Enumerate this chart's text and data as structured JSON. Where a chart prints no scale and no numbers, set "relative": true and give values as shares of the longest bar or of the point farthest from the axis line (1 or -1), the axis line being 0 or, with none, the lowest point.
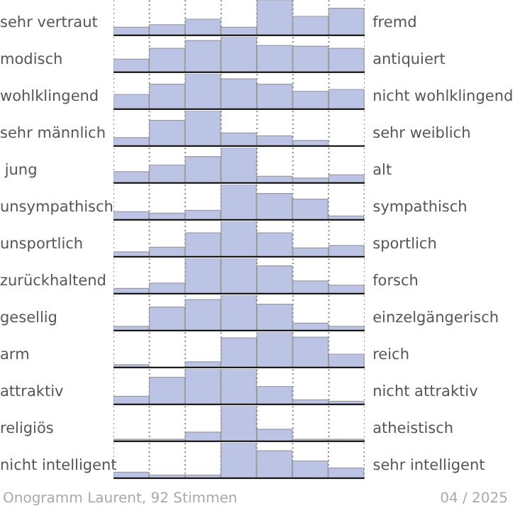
{
  "chart_data": [
    {
      "type": "bar",
      "relative": true,
      "ylabel": "sehr vertraut",
      "y2label": "fremd",
      "categories": [
        null,
        null,
        null,
        null,
        null,
        null,
        null
      ],
      "values": [
        0.23,
        0.3,
        0.46,
        0.23,
        1,
        0.54,
        0.77
      ],
      "color": "#bcc4e6",
      "grid": "x",
      "tick_labels": false
    },
    {
      "type": "bar",
      "relative": true,
      "ylabel": "modisch",
      "y2label": "antiquiert",
      "categories": [
        null,
        null,
        null,
        null,
        null,
        null,
        null
      ],
      "values": [
        0.37,
        0.68,
        0.9,
        1,
        0.76,
        0.74,
        0.68
      ],
      "color": "#bcc4e6",
      "grid": "x",
      "tick_labels": false
    },
    {
      "type": "bar",
      "relative": true,
      "ylabel": "wohlklingend",
      "y2label": "nicht wohlklingend",
      "categories": [
        null,
        null,
        null,
        null,
        null,
        null,
        null
      ],
      "values": [
        0.42,
        0.71,
        1,
        0.86,
        0.71,
        0.51,
        0.56
      ],
      "color": "#bcc4e6",
      "grid": "x",
      "tick_labels": false
    },
    {
      "type": "bar",
      "relative": true,
      "ylabel": "sehr männlich",
      "y2label": "sehr weiblich",
      "categories": [
        null,
        null,
        null,
        null,
        null,
        null,
        null
      ],
      "values": [
        0.24,
        0.73,
        1,
        0.37,
        0.29,
        0.16,
        0
      ],
      "color": "#bcc4e6",
      "grid": "x",
      "tick_labels": false
    },
    {
      "type": "bar",
      "relative": true,
      "ylabel": " jung",
      "y2label": "alt",
      "categories": [
        null,
        null,
        null,
        null,
        null,
        null,
        null
      ],
      "values": [
        0.32,
        0.51,
        0.75,
        1,
        0.19,
        0.14,
        0.23
      ],
      "color": "#bcc4e6",
      "grid": "x",
      "tick_labels": false
    },
    {
      "type": "bar",
      "relative": true,
      "ylabel": "unsympathisch",
      "y2label": "sympathisch",
      "categories": [
        null,
        null,
        null,
        null,
        null,
        null,
        null
      ],
      "values": [
        0.23,
        0.19,
        0.27,
        1,
        0.75,
        0.59,
        0.11
      ],
      "color": "#bcc4e6",
      "grid": "x",
      "tick_labels": false
    },
    {
      "type": "bar",
      "relative": true,
      "ylabel": "unsportlich",
      "y2label": "sportlich",
      "categories": [
        null,
        null,
        null,
        null,
        null,
        null,
        null
      ],
      "values": [
        0.14,
        0.27,
        0.68,
        1,
        0.68,
        0.25,
        0.32
      ],
      "color": "#bcc4e6",
      "grid": "x",
      "tick_labels": false
    },
    {
      "type": "bar",
      "relative": true,
      "ylabel": "zurückhaltend",
      "y2label": "forsch",
      "categories": [
        null,
        null,
        null,
        null,
        null,
        null,
        null
      ],
      "values": [
        0.15,
        0.3,
        1,
        1,
        0.79,
        0.36,
        0.24
      ],
      "color": "#bcc4e6",
      "grid": "x",
      "tick_labels": false
    },
    {
      "type": "bar",
      "relative": true,
      "ylabel": "gesellig",
      "y2label": "einzelgängerisch",
      "categories": [
        null,
        null,
        null,
        null,
        null,
        null,
        null
      ],
      "values": [
        0.12,
        0.67,
        0.88,
        1,
        0.75,
        0.21,
        0.12
      ],
      "color": "#bcc4e6",
      "grid": "x",
      "tick_labels": false
    },
    {
      "type": "bar",
      "relative": true,
      "ylabel": "arm",
      "y2label": "reich",
      "categories": [
        null,
        null,
        null,
        null,
        null,
        null,
        null
      ],
      "values": [
        0.08,
        0,
        0.16,
        0.84,
        1,
        0.86,
        0.38
      ],
      "color": "#bcc4e6",
      "grid": "x",
      "tick_labels": false
    },
    {
      "type": "bar",
      "relative": true,
      "ylabel": "attraktiv",
      "y2label": "nicht attraktiv",
      "categories": [
        null,
        null,
        null,
        null,
        null,
        null,
        null
      ],
      "values": [
        0.23,
        0.77,
        1,
        1,
        0.51,
        0.13,
        0.09
      ],
      "color": "#bcc4e6",
      "grid": "x",
      "tick_labels": false
    },
    {
      "type": "bar",
      "relative": true,
      "ylabel": "religiös",
      "y2label": "atheistisch",
      "categories": [
        null,
        null,
        null,
        null,
        null,
        null,
        null
      ],
      "values": [
        0.06,
        0.06,
        0.26,
        1,
        0.34,
        0.06,
        0.06
      ],
      "color": "#bcc4e6",
      "grid": "x",
      "tick_labels": false
    },
    {
      "type": "bar",
      "relative": true,
      "ylabel": "nicht intelligent",
      "y2label": "sehr intelligent",
      "categories": [
        null,
        null,
        null,
        null,
        null,
        null,
        null
      ],
      "values": [
        0.17,
        0.09,
        0.09,
        1,
        0.78,
        0.49,
        0.29
      ],
      "color": "#bcc4e6",
      "grid": "x",
      "tick_labels": false,
      "annotations": [
        "Onogramm Laurent, 92 Stimmen",
        "04 / 2025"
      ]
    }
  ]
}
